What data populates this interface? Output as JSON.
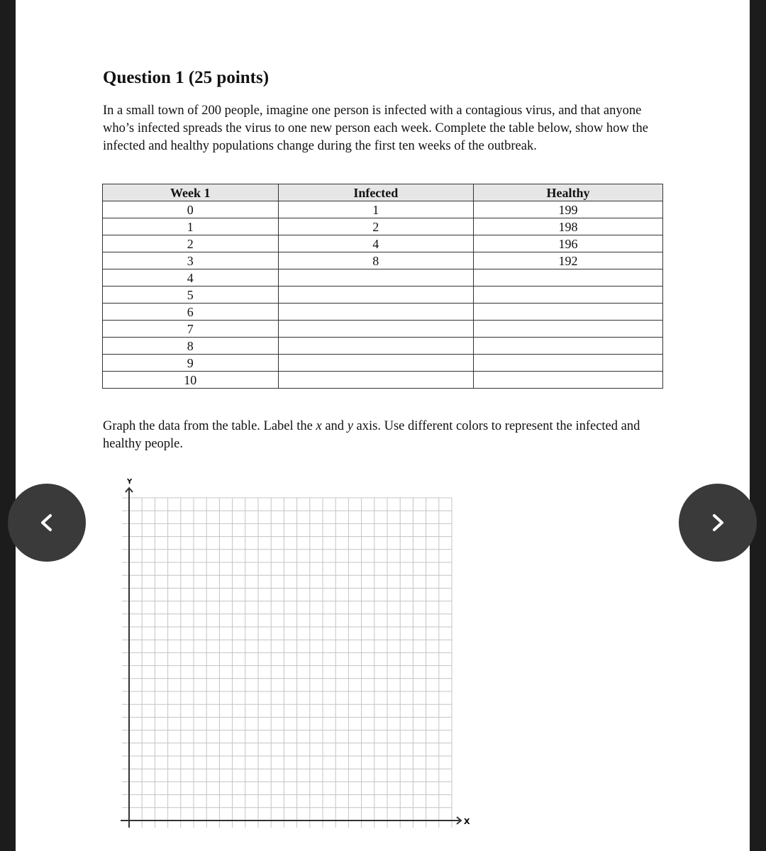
{
  "question": {
    "title": "Question 1 (25 points)",
    "prompt": "In a small town of 200 people, imagine one person is infected with a contagious virus, and that anyone who’s infected spreads the virus to one new person each week. Complete the table below, show how the infected and healthy populations change during the first ten weeks of the outbreak."
  },
  "table": {
    "headers": [
      "Week 1",
      "Infected",
      "Healthy"
    ],
    "rows": [
      [
        "0",
        "1",
        "199"
      ],
      [
        "1",
        "2",
        "198"
      ],
      [
        "2",
        "4",
        "196"
      ],
      [
        "3",
        "8",
        "192"
      ],
      [
        "4",
        "",
        ""
      ],
      [
        "5",
        "",
        ""
      ],
      [
        "6",
        "",
        ""
      ],
      [
        "7",
        "",
        ""
      ],
      [
        "8",
        "",
        ""
      ],
      [
        "9",
        "",
        ""
      ],
      [
        "10",
        "",
        ""
      ]
    ]
  },
  "graph_prompt": {
    "before": "Graph the data from the table. Label the ",
    "x": "x",
    "mid": " and ",
    "y": "y",
    "after": " axis. Use different colors to represent the infected and healthy people."
  },
  "graph": {
    "x_label": "X",
    "y_label": "Y",
    "grid_columns": 25,
    "grid_rows": 25
  },
  "nav": {
    "prev_icon": "chevron-left-icon",
    "next_icon": "chevron-right-icon"
  }
}
